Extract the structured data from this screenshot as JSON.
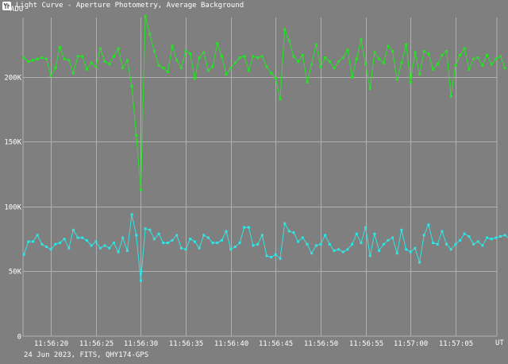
{
  "window": {
    "title": "Light Curve - Aperture Photometry, Average Background",
    "icon": "light-curve-app-icon"
  },
  "footer": "24 Jun 2023, FITS, QHY174-GPS",
  "colors": {
    "background": "#7f7f7f",
    "grid": "#b0b0b0",
    "axis_text": "#ffffff",
    "series_green": "#22e622",
    "series_cyan": "#2ee6e6"
  },
  "chart_data": {
    "type": "line",
    "title": "",
    "xlabel": "UT",
    "ylabel": "ADU",
    "grid": true,
    "ylim": [
      0,
      246000
    ],
    "xlim": [
      "11:56:16.9",
      "11:57:09.6"
    ],
    "x_tick_labels": [
      "11:56:20",
      "11:56:25",
      "11:56:30",
      "11:56:35",
      "11:56:40",
      "11:56:45",
      "11:56:50",
      "11:56:55",
      "11:57:00",
      "11:57:05"
    ],
    "y_tick_labels": [
      "0",
      "50K",
      "100K",
      "150K",
      "200K"
    ],
    "sample_interval_s": 0.5,
    "first_sample": "11:56:17",
    "series": [
      {
        "color": "#22e622",
        "values": [
          215000,
          212000,
          213000,
          214000,
          215000,
          214000,
          201000,
          207000,
          223000,
          214000,
          213000,
          203000,
          216000,
          216000,
          206000,
          211000,
          208000,
          222000,
          212000,
          210000,
          216000,
          222000,
          207000,
          213000,
          193000,
          155000,
          113000,
          247000,
          233000,
          220000,
          209000,
          207000,
          204000,
          224000,
          213000,
          207000,
          220000,
          218000,
          199000,
          215000,
          219000,
          205000,
          208000,
          226000,
          216000,
          202000,
          207000,
          211000,
          215000,
          216000,
          205000,
          216000,
          215000,
          216000,
          208000,
          203000,
          199000,
          183000,
          237000,
          228000,
          216000,
          212000,
          217000,
          196000,
          210000,
          225000,
          208000,
          215000,
          212000,
          207000,
          212000,
          215000,
          221000,
          200000,
          214000,
          229000,
          210000,
          191000,
          219000,
          214000,
          211000,
          224000,
          220000,
          198000,
          211000,
          225000,
          196000,
          219000,
          202000,
          220000,
          218000,
          206000,
          210000,
          217000,
          220000,
          185000,
          209000,
          217000,
          222000,
          206000,
          214000,
          215000,
          209000,
          217000,
          210000,
          214000,
          216000,
          207000
        ]
      },
      {
        "color": "#2ee6e6",
        "values": [
          63000,
          73000,
          73000,
          78000,
          71000,
          69000,
          67000,
          71000,
          72000,
          75000,
          68000,
          82000,
          76000,
          76000,
          74000,
          70000,
          73000,
          68000,
          70000,
          68000,
          72000,
          65000,
          76000,
          66000,
          94000,
          78000,
          43000,
          83000,
          82000,
          75000,
          79000,
          72000,
          72000,
          74000,
          78000,
          68000,
          67000,
          75000,
          73000,
          68000,
          78000,
          76000,
          72000,
          72000,
          74000,
          81000,
          67000,
          69000,
          72000,
          84000,
          84000,
          70000,
          71000,
          78000,
          62000,
          61000,
          63000,
          60000,
          87000,
          81000,
          80000,
          73000,
          76000,
          71000,
          64000,
          70000,
          71000,
          78000,
          71000,
          66000,
          67000,
          65000,
          67000,
          71000,
          79000,
          72000,
          84000,
          62000,
          79000,
          66000,
          71000,
          74000,
          76000,
          64000,
          82000,
          67000,
          65000,
          68000,
          57000,
          78000,
          86000,
          72000,
          71000,
          81000,
          71000,
          67000,
          71000,
          74000,
          79000,
          77000,
          71000,
          73000,
          70000,
          76000,
          75000,
          76000,
          77000,
          78000,
          75000
        ]
      }
    ]
  }
}
